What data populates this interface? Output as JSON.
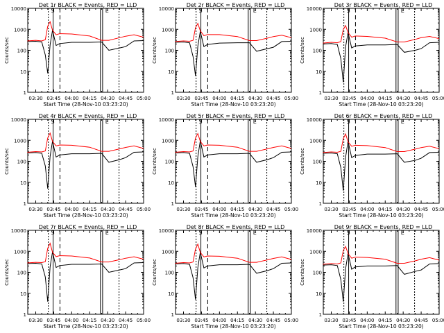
{
  "figure": {
    "background": "#ffffff",
    "axis_color": "#000000",
    "events_color": "#000000",
    "lld_color": "#ff0000"
  },
  "common": {
    "ylabel": "Counts/sec",
    "xlabel": "Start Time (28-Nov-10 03:23:20)",
    "x_ticks": [
      "03:30",
      "03:45",
      "04:00",
      "04:15",
      "04:30",
      "04:45",
      "05:00"
    ],
    "y_ticks": [
      "1",
      "10",
      "100",
      "1000",
      "10000"
    ],
    "marker_s": "S",
    "marker_e": "E"
  },
  "chart_data": [
    {
      "type": "line",
      "title": "Det 1r BLACK = Events, RED = LLD",
      "xlabel": "Start Time (28-Nov-10 03:23:20)",
      "ylabel": "Counts/sec",
      "xlim": [
        "03:23:20",
        "05:00:00"
      ],
      "ylim": [
        1,
        10000
      ],
      "yscale": "log",
      "grid": false,
      "x": [
        "03:23",
        "03:30",
        "03:35",
        "03:38",
        "03:40",
        "03:42",
        "03:44",
        "03:47",
        "03:50",
        "04:00",
        "04:15",
        "04:25",
        "04:31",
        "04:40",
        "04:45",
        "04:52",
        "05:00"
      ],
      "series": [
        {
          "name": "Events",
          "color": "#000000",
          "values": [
            260,
            270,
            250,
            60,
            8,
            180,
            900,
            170,
            210,
            240,
            240,
            250,
            100,
            130,
            150,
            280,
            290
          ]
        },
        {
          "name": "LLD",
          "color": "#ff0000",
          "values": [
            280,
            300,
            280,
            320,
            1400,
            2300,
            900,
            550,
            620,
            600,
            480,
            300,
            300,
            400,
            470,
            550,
            420
          ]
        }
      ]
    },
    {
      "type": "line",
      "title": "Det 2r BLACK = Events, RED = LLD",
      "xlabel": "Start Time (28-Nov-10 03:23:20)",
      "ylabel": "Counts/sec",
      "xlim": [
        "03:23:20",
        "05:00:00"
      ],
      "ylim": [
        1,
        10000
      ],
      "yscale": "log",
      "grid": false,
      "x": [
        "03:23",
        "03:30",
        "03:35",
        "03:38",
        "03:40",
        "03:42",
        "03:44",
        "03:47",
        "03:50",
        "04:00",
        "04:15",
        "04:25",
        "04:31",
        "04:40",
        "04:45",
        "04:52",
        "05:00"
      ],
      "series": [
        {
          "name": "Events",
          "color": "#000000",
          "values": [
            240,
            250,
            230,
            50,
            6,
            160,
            800,
            150,
            190,
            220,
            230,
            230,
            90,
            120,
            140,
            260,
            270
          ]
        },
        {
          "name": "LLD",
          "color": "#ff0000",
          "values": [
            260,
            280,
            270,
            300,
            1200,
            1900,
            850,
            500,
            560,
            560,
            450,
            290,
            290,
            380,
            450,
            520,
            400
          ]
        }
      ]
    },
    {
      "type": "line",
      "title": "Det 3r BLACK = Events, RED = LLD",
      "xlabel": "Start Time (28-Nov-10 03:23:20)",
      "ylabel": "Counts/sec",
      "xlim": [
        "03:23:20",
        "05:00:00"
      ],
      "ylim": [
        1,
        10000
      ],
      "yscale": "log",
      "grid": false,
      "x": [
        "03:23",
        "03:30",
        "03:35",
        "03:38",
        "03:40",
        "03:42",
        "03:44",
        "03:47",
        "03:50",
        "04:00",
        "04:15",
        "04:25",
        "04:31",
        "04:40",
        "04:45",
        "04:52",
        "05:00"
      ],
      "series": [
        {
          "name": "Events",
          "color": "#000000",
          "values": [
            200,
            210,
            190,
            40,
            3,
            150,
            700,
            130,
            160,
            180,
            180,
            190,
            80,
            100,
            120,
            230,
            240
          ]
        },
        {
          "name": "LLD",
          "color": "#ff0000",
          "values": [
            220,
            240,
            230,
            260,
            1000,
            1500,
            700,
            420,
            480,
            460,
            380,
            250,
            250,
            330,
            400,
            460,
            360
          ]
        }
      ]
    },
    {
      "type": "line",
      "title": "Det 4r BLACK = Events, RED = LLD",
      "xlabel": "Start Time (28-Nov-10 03:23:20)",
      "ylabel": "Counts/sec",
      "xlim": [
        "03:23:20",
        "05:00:00"
      ],
      "ylim": [
        1,
        10000
      ],
      "yscale": "log",
      "grid": false,
      "x": [
        "03:23",
        "03:30",
        "03:35",
        "03:38",
        "03:40",
        "03:42",
        "03:44",
        "03:47",
        "03:50",
        "04:00",
        "04:15",
        "04:25",
        "04:31",
        "04:40",
        "04:45",
        "04:52",
        "05:00"
      ],
      "series": [
        {
          "name": "Events",
          "color": "#000000",
          "values": [
            250,
            260,
            240,
            60,
            5,
            170,
            900,
            160,
            200,
            230,
            230,
            240,
            90,
            120,
            150,
            270,
            280
          ]
        },
        {
          "name": "LLD",
          "color": "#ff0000",
          "values": [
            270,
            290,
            280,
            310,
            1300,
            2200,
            880,
            540,
            600,
            580,
            470,
            300,
            300,
            390,
            460,
            540,
            410
          ]
        }
      ]
    },
    {
      "type": "line",
      "title": "Det 5r BLACK = Events, RED = LLD",
      "xlabel": "Start Time (28-Nov-10 03:23:20)",
      "ylabel": "Counts/sec",
      "xlim": [
        "03:23:20",
        "05:00:00"
      ],
      "ylim": [
        1,
        10000
      ],
      "yscale": "log",
      "grid": false,
      "x": [
        "03:23",
        "03:30",
        "03:35",
        "03:38",
        "03:40",
        "03:42",
        "03:44",
        "03:47",
        "03:50",
        "04:00",
        "04:15",
        "04:25",
        "04:31",
        "04:40",
        "04:45",
        "04:52",
        "05:00"
      ],
      "series": [
        {
          "name": "Events",
          "color": "#000000",
          "values": [
            250,
            260,
            240,
            55,
            6,
            170,
            950,
            160,
            200,
            230,
            230,
            240,
            90,
            120,
            150,
            270,
            280
          ]
        },
        {
          "name": "LLD",
          "color": "#ff0000",
          "values": [
            270,
            290,
            280,
            310,
            1300,
            2100,
            880,
            540,
            600,
            580,
            470,
            300,
            300,
            390,
            460,
            540,
            410
          ]
        }
      ]
    },
    {
      "type": "line",
      "title": "Det 6r BLACK = Events, RED = LLD",
      "xlabel": "Start Time (28-Nov-10 03:23:20)",
      "ylabel": "Counts/sec",
      "xlim": [
        "03:23:20",
        "05:00:00"
      ],
      "ylim": [
        1,
        10000
      ],
      "yscale": "log",
      "grid": false,
      "x": [
        "03:23",
        "03:30",
        "03:35",
        "03:38",
        "03:40",
        "03:42",
        "03:44",
        "03:47",
        "03:50",
        "04:00",
        "04:15",
        "04:25",
        "04:31",
        "04:40",
        "04:45",
        "04:52",
        "05:00"
      ],
      "series": [
        {
          "name": "Events",
          "color": "#000000",
          "values": [
            240,
            250,
            230,
            50,
            4,
            160,
            900,
            150,
            190,
            220,
            220,
            230,
            90,
            110,
            140,
            260,
            270
          ]
        },
        {
          "name": "LLD",
          "color": "#ff0000",
          "values": [
            260,
            280,
            270,
            300,
            1200,
            2000,
            850,
            520,
            580,
            560,
            450,
            290,
            290,
            380,
            450,
            520,
            400
          ]
        }
      ]
    },
    {
      "type": "line",
      "title": "Det 7r BLACK = Events, RED = LLD",
      "xlabel": "Start Time (28-Nov-10 03:23:20)",
      "ylabel": "Counts/sec",
      "xlim": [
        "03:23:20",
        "05:00:00"
      ],
      "ylim": [
        1,
        10000
      ],
      "yscale": "log",
      "grid": false,
      "x": [
        "03:23",
        "03:30",
        "03:35",
        "03:38",
        "03:40",
        "03:42",
        "03:44",
        "03:47",
        "03:50",
        "04:00",
        "04:15",
        "04:25",
        "04:31",
        "04:40",
        "04:45",
        "04:52",
        "05:00"
      ],
      "series": [
        {
          "name": "Events",
          "color": "#000000",
          "values": [
            260,
            270,
            250,
            60,
            4,
            180,
            950,
            170,
            210,
            240,
            240,
            250,
            100,
            130,
            150,
            280,
            290
          ]
        },
        {
          "name": "LLD",
          "color": "#ff0000",
          "values": [
            280,
            300,
            290,
            320,
            1400,
            2400,
            900,
            560,
            620,
            600,
            480,
            310,
            310,
            400,
            470,
            550,
            420
          ]
        }
      ]
    },
    {
      "type": "line",
      "title": "Det 8r BLACK = Events, RED = LLD",
      "xlabel": "Start Time (28-Nov-10 03:23:20)",
      "ylabel": "Counts/sec",
      "xlim": [
        "03:23:20",
        "05:00:00"
      ],
      "ylim": [
        1,
        10000
      ],
      "yscale": "log",
      "grid": false,
      "x": [
        "03:23",
        "03:30",
        "03:35",
        "03:38",
        "03:40",
        "03:42",
        "03:44",
        "03:47",
        "03:50",
        "04:00",
        "04:15",
        "04:25",
        "04:31",
        "04:40",
        "04:45",
        "04:52",
        "05:00"
      ],
      "series": [
        {
          "name": "Events",
          "color": "#000000",
          "values": [
            250,
            260,
            240,
            55,
            5,
            170,
            900,
            160,
            200,
            230,
            230,
            240,
            90,
            120,
            150,
            270,
            280
          ]
        },
        {
          "name": "LLD",
          "color": "#ff0000",
          "values": [
            270,
            290,
            280,
            310,
            1300,
            2200,
            880,
            540,
            600,
            580,
            470,
            300,
            300,
            390,
            460,
            540,
            410
          ]
        }
      ]
    },
    {
      "type": "line",
      "title": "Det 9r BLACK = Events, RED = LLD",
      "xlabel": "Start Time (28-Nov-10 03:23:20)",
      "ylabel": "Counts/sec",
      "xlim": [
        "03:23:20",
        "05:00:00"
      ],
      "ylim": [
        1,
        10000
      ],
      "yscale": "log",
      "grid": false,
      "x": [
        "03:23",
        "03:30",
        "03:35",
        "03:38",
        "03:40",
        "03:42",
        "03:44",
        "03:47",
        "03:50",
        "04:00",
        "04:15",
        "04:25",
        "04:31",
        "04:40",
        "04:45",
        "04:52",
        "05:00"
      ],
      "series": [
        {
          "name": "Events",
          "color": "#000000",
          "values": [
            220,
            230,
            210,
            45,
            4,
            150,
            800,
            140,
            180,
            200,
            200,
            210,
            80,
            110,
            130,
            250,
            260
          ]
        },
        {
          "name": "LLD",
          "color": "#ff0000",
          "values": [
            240,
            260,
            250,
            280,
            1100,
            1700,
            780,
            470,
            530,
            510,
            420,
            270,
            270,
            350,
            420,
            500,
            380
          ]
        }
      ]
    }
  ]
}
